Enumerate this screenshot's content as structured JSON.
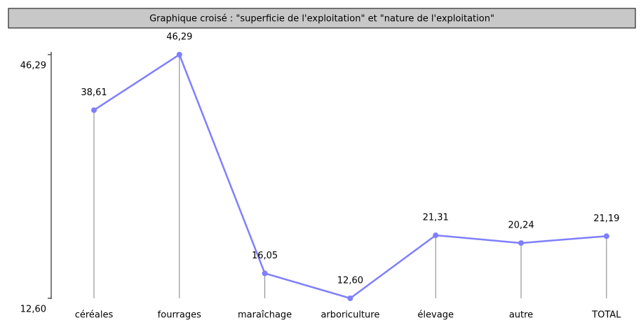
{
  "chart_data": {
    "type": "line",
    "title": "Graphique croisé : \"superficie de l'exploitation\" et \"nature de l'exploitation\"",
    "categories": [
      "céréales",
      "fourrages",
      "maraîchage",
      "arboriculture",
      "élevage",
      "autre",
      "TOTAL"
    ],
    "series": [
      {
        "color": "#7f7fff",
        "values": [
          38.61,
          46.29,
          16.05,
          12.6,
          21.31,
          20.24,
          21.19
        ],
        "value_labels": [
          "38,61",
          "46,29",
          "16,05",
          "12,60",
          "21,31",
          "20,24",
          "21,19"
        ]
      }
    ],
    "ylim": [
      12.6,
      46.29
    ],
    "yticks": [
      {
        "value": 46.29,
        "label": "46,29"
      },
      {
        "value": 12.6,
        "label": "12,60"
      }
    ]
  }
}
